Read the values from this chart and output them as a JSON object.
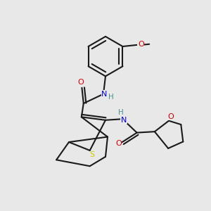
{
  "bg_color": "#e8e8e8",
  "bond_color": "#1a1a1a",
  "atom_colors": {
    "N": "#0000cc",
    "O": "#cc0000",
    "S": "#cccc00",
    "H": "#4a9090",
    "C": "#1a1a1a"
  },
  "figsize": [
    3.0,
    3.0
  ],
  "dpi": 100
}
